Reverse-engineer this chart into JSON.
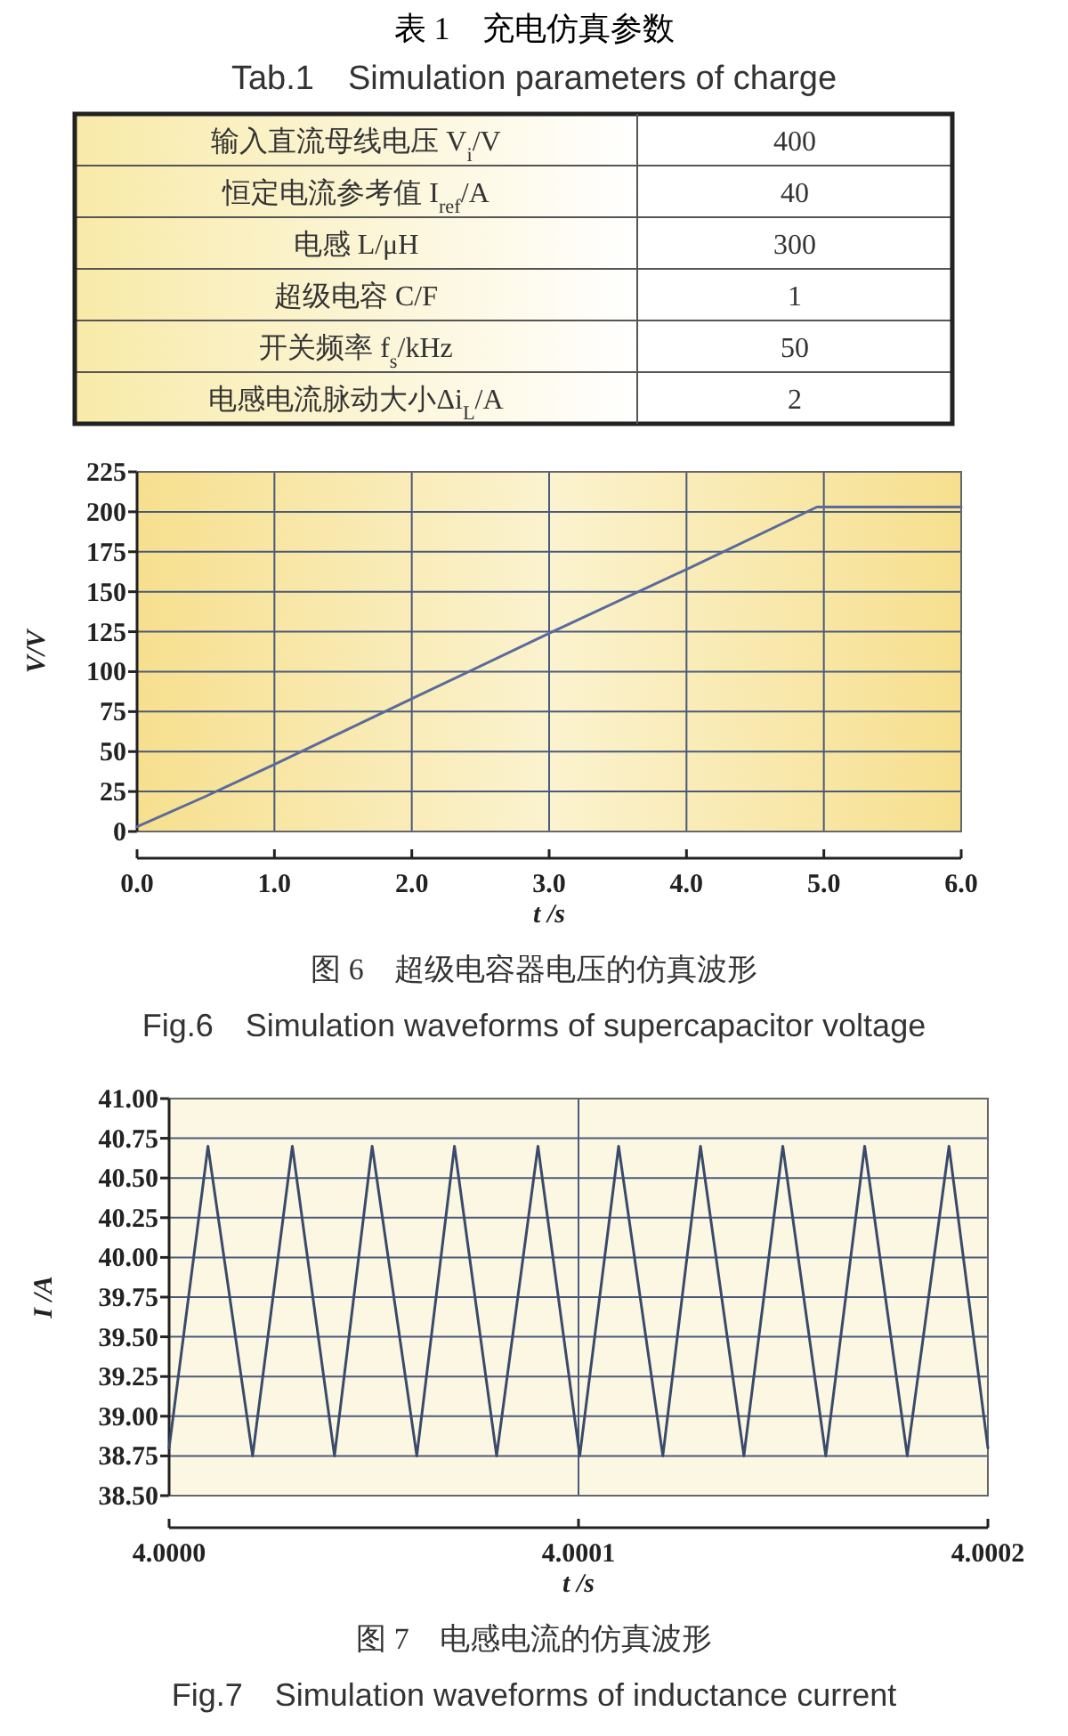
{
  "chart_data": [
    {
      "type": "other",
      "title": "表 1　充电仿真参数",
      "subtitle": "Tab.1　Simulation parameters of charge",
      "categories": [
        "输入直流母线电压 V$_{i}$/V",
        "恒定电流参考值 I$_{ref}$/A",
        "电感 L/μH",
        "超级电容 C/F",
        "开关频率 f$_{s}$/kHz",
        "电感电流脉动大小Δi$_{L}$/A"
      ],
      "values": [
        400,
        40,
        300,
        1,
        50,
        2
      ],
      "data_labels": true
    },
    {
      "type": "line",
      "xlabel": "t /s",
      "ylabel": "V/V",
      "xlim": [
        0,
        6
      ],
      "ylim": [
        0,
        225
      ],
      "xticks": [
        {
          "value": 0,
          "label": "0.0"
        },
        {
          "value": 1,
          "label": "1.0"
        },
        {
          "value": 2,
          "label": "2.0"
        },
        {
          "value": 3,
          "label": "3.0"
        },
        {
          "value": 4,
          "label": "4.0"
        },
        {
          "value": 5,
          "label": "5.0"
        },
        {
          "value": 6,
          "label": "6.0"
        }
      ],
      "yticks": [
        0,
        25,
        50,
        75,
        100,
        125,
        150,
        175,
        200,
        225
      ],
      "grid": true,
      "series": [
        {
          "color": "#5a6a9a",
          "x": [
            0,
            0.5,
            1,
            2,
            3,
            4,
            4.95,
            5,
            6
          ],
          "values": [
            3,
            22,
            42,
            83,
            124,
            164,
            203,
            203,
            203
          ]
        }
      ],
      "annotations": [
        "图 6　超级电容器电压的仿真波形",
        "Fig.6　Simulation waveforms of supercapacitor voltage"
      ]
    },
    {
      "type": "line",
      "xlabel": "t /s",
      "ylabel": "I /A",
      "xlim": [
        4.0,
        4.0002
      ],
      "ylim": [
        38.5,
        41.0
      ],
      "xticks": [
        {
          "value": 4.0,
          "label": "4.0000"
        },
        {
          "value": 4.0001,
          "label": "4.0001"
        },
        {
          "value": 4.0002,
          "label": "4.0002"
        }
      ],
      "yticks": [
        {
          "value": 38.5,
          "label": "38.50"
        },
        {
          "value": 38.75,
          "label": "38.75"
        },
        {
          "value": 39.0,
          "label": "39.00"
        },
        {
          "value": 39.25,
          "label": "39.25"
        },
        {
          "value": 39.5,
          "label": "39.50"
        },
        {
          "value": 39.75,
          "label": "39.75"
        },
        {
          "value": 40.0,
          "label": "40.00"
        },
        {
          "value": 40.25,
          "label": "40.25"
        },
        {
          "value": 40.5,
          "label": "40.50"
        },
        {
          "value": 40.75,
          "label": "40.75"
        },
        {
          "value": 41.0,
          "label": "41.00"
        }
      ],
      "grid": true,
      "series": [
        {
          "color": "#3a4a6a",
          "x": [
            4.0,
            4.0000095,
            4.0000204,
            4.0000301,
            4.0000404,
            4.0000496,
            4.0000605,
            4.0000697,
            4.00008,
            4.0000901,
            4.0001003,
            4.0001098,
            4.0001206,
            4.0001298,
            4.0001404,
            4.0001499,
            4.0001604,
            4.0001699,
            4.0001803,
            4.0001905,
            4.0002
          ],
          "values": [
            38.8,
            40.7,
            38.75,
            40.7,
            38.75,
            40.7,
            38.75,
            40.7,
            38.75,
            40.7,
            38.75,
            40.7,
            38.75,
            40.7,
            38.75,
            40.7,
            38.75,
            40.7,
            38.75,
            40.7,
            38.8
          ]
        }
      ],
      "annotations": [
        "图 7　电感电流的仿真波形",
        "Fig.7　Simulation waveforms of inductance current"
      ]
    }
  ]
}
